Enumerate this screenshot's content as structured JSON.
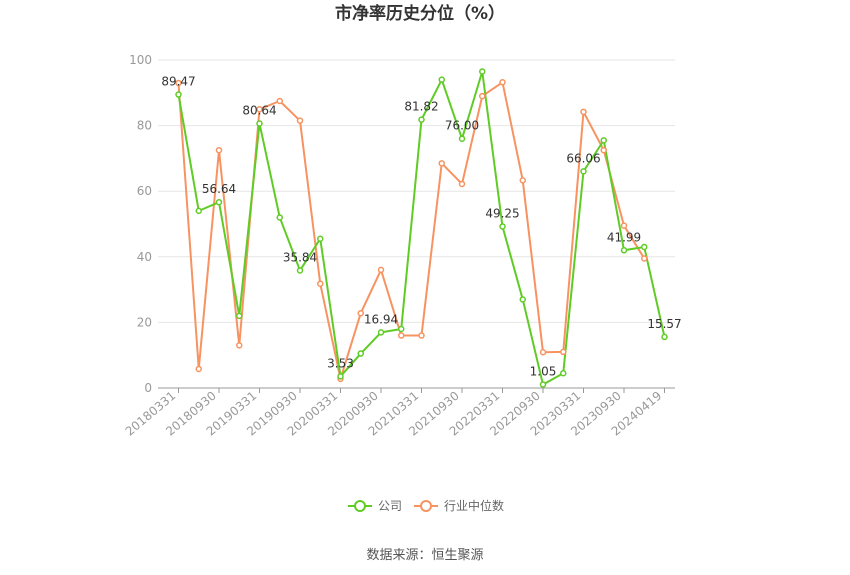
{
  "chart_data": {
    "type": "line",
    "title": "市净率历史分位（%）",
    "ylim": [
      0,
      100
    ],
    "y_ticks": [
      0,
      20,
      40,
      60,
      80,
      100
    ],
    "x": [
      "20180331",
      "20180630",
      "20180930",
      "20181231",
      "20190331",
      "20190630",
      "20190930",
      "20191231",
      "20200331",
      "20200630",
      "20200930",
      "20201231",
      "20210331",
      "20210630",
      "20210930",
      "20211231",
      "20220331",
      "20220630",
      "20220930",
      "20221231",
      "20230331",
      "20230630",
      "20230930",
      "20231231",
      "20240419"
    ],
    "x_tick_labels": [
      "20180331",
      "20180930",
      "20190331",
      "20190930",
      "20200331",
      "20200930",
      "20210331",
      "20210930",
      "20220331",
      "20220930",
      "20230331",
      "20230930",
      "20240419"
    ],
    "grid": true,
    "legend_position": "bottom",
    "series": [
      {
        "name": "公司",
        "color": "#5fcc26",
        "values": [
          89.47,
          54,
          56.64,
          22,
          80.64,
          52,
          35.84,
          45.5,
          3.53,
          10.5,
          16.94,
          18,
          81.82,
          94,
          76.0,
          96.5,
          49.25,
          27,
          1.05,
          4.5,
          66.06,
          75.5,
          41.99,
          43,
          15.57
        ]
      },
      {
        "name": "行业中位数",
        "color": "#f79361",
        "values": [
          93,
          5.8,
          72.5,
          13,
          85,
          87.5,
          81.5,
          31.8,
          2.8,
          22.8,
          36,
          16,
          16,
          68.5,
          62.2,
          89,
          93.2,
          63.3,
          10.9,
          11,
          84.2,
          72.5,
          49.5,
          39.5,
          null
        ]
      }
    ],
    "data_labels": [
      {
        "index": 0,
        "text": "89.47"
      },
      {
        "index": 2,
        "text": "56.64"
      },
      {
        "index": 4,
        "text": "80.64"
      },
      {
        "index": 6,
        "text": "35.84"
      },
      {
        "index": 8,
        "text": "3.53"
      },
      {
        "index": 10,
        "text": "16.94"
      },
      {
        "index": 12,
        "text": "81.82"
      },
      {
        "index": 14,
        "text": "76.00"
      },
      {
        "index": 16,
        "text": "49.25"
      },
      {
        "index": 18,
        "text": "1.05"
      },
      {
        "index": 20,
        "text": "66.06"
      },
      {
        "index": 22,
        "text": "41.99"
      },
      {
        "index": 24,
        "text": "15.57"
      }
    ]
  },
  "footer": {
    "source": "数据来源：恒生聚源"
  }
}
